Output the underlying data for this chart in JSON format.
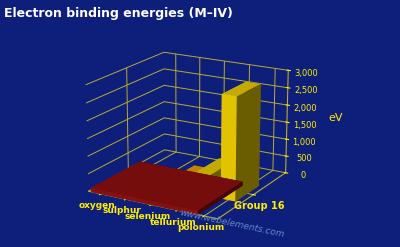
{
  "title": "Electron binding energies (M–IV)",
  "ylabel": "eV",
  "xlabel": "Group 16",
  "watermark": "www.webelements.com",
  "elements": [
    "oxygen",
    "sulphur",
    "selenium",
    "tellurium",
    "polonium"
  ],
  "values": [
    0,
    0,
    229,
    583,
    2908
  ],
  "yticks": [
    0,
    500,
    1000,
    1500,
    2000,
    2500,
    3000
  ],
  "yticklabels": [
    "0",
    "500",
    "1,000",
    "1,500",
    "2,000",
    "2,500",
    "3,000"
  ],
  "background_color": "#0d1f7a",
  "bar_color_main": "#ffdd00",
  "bar_color_small": "#ffaa00",
  "base_color": "#991111",
  "grid_color": "#bbaa33",
  "title_color": "#ffffff",
  "label_color": "#ffee00",
  "tick_color": "#ffee00",
  "watermark_color": "#6688cc"
}
